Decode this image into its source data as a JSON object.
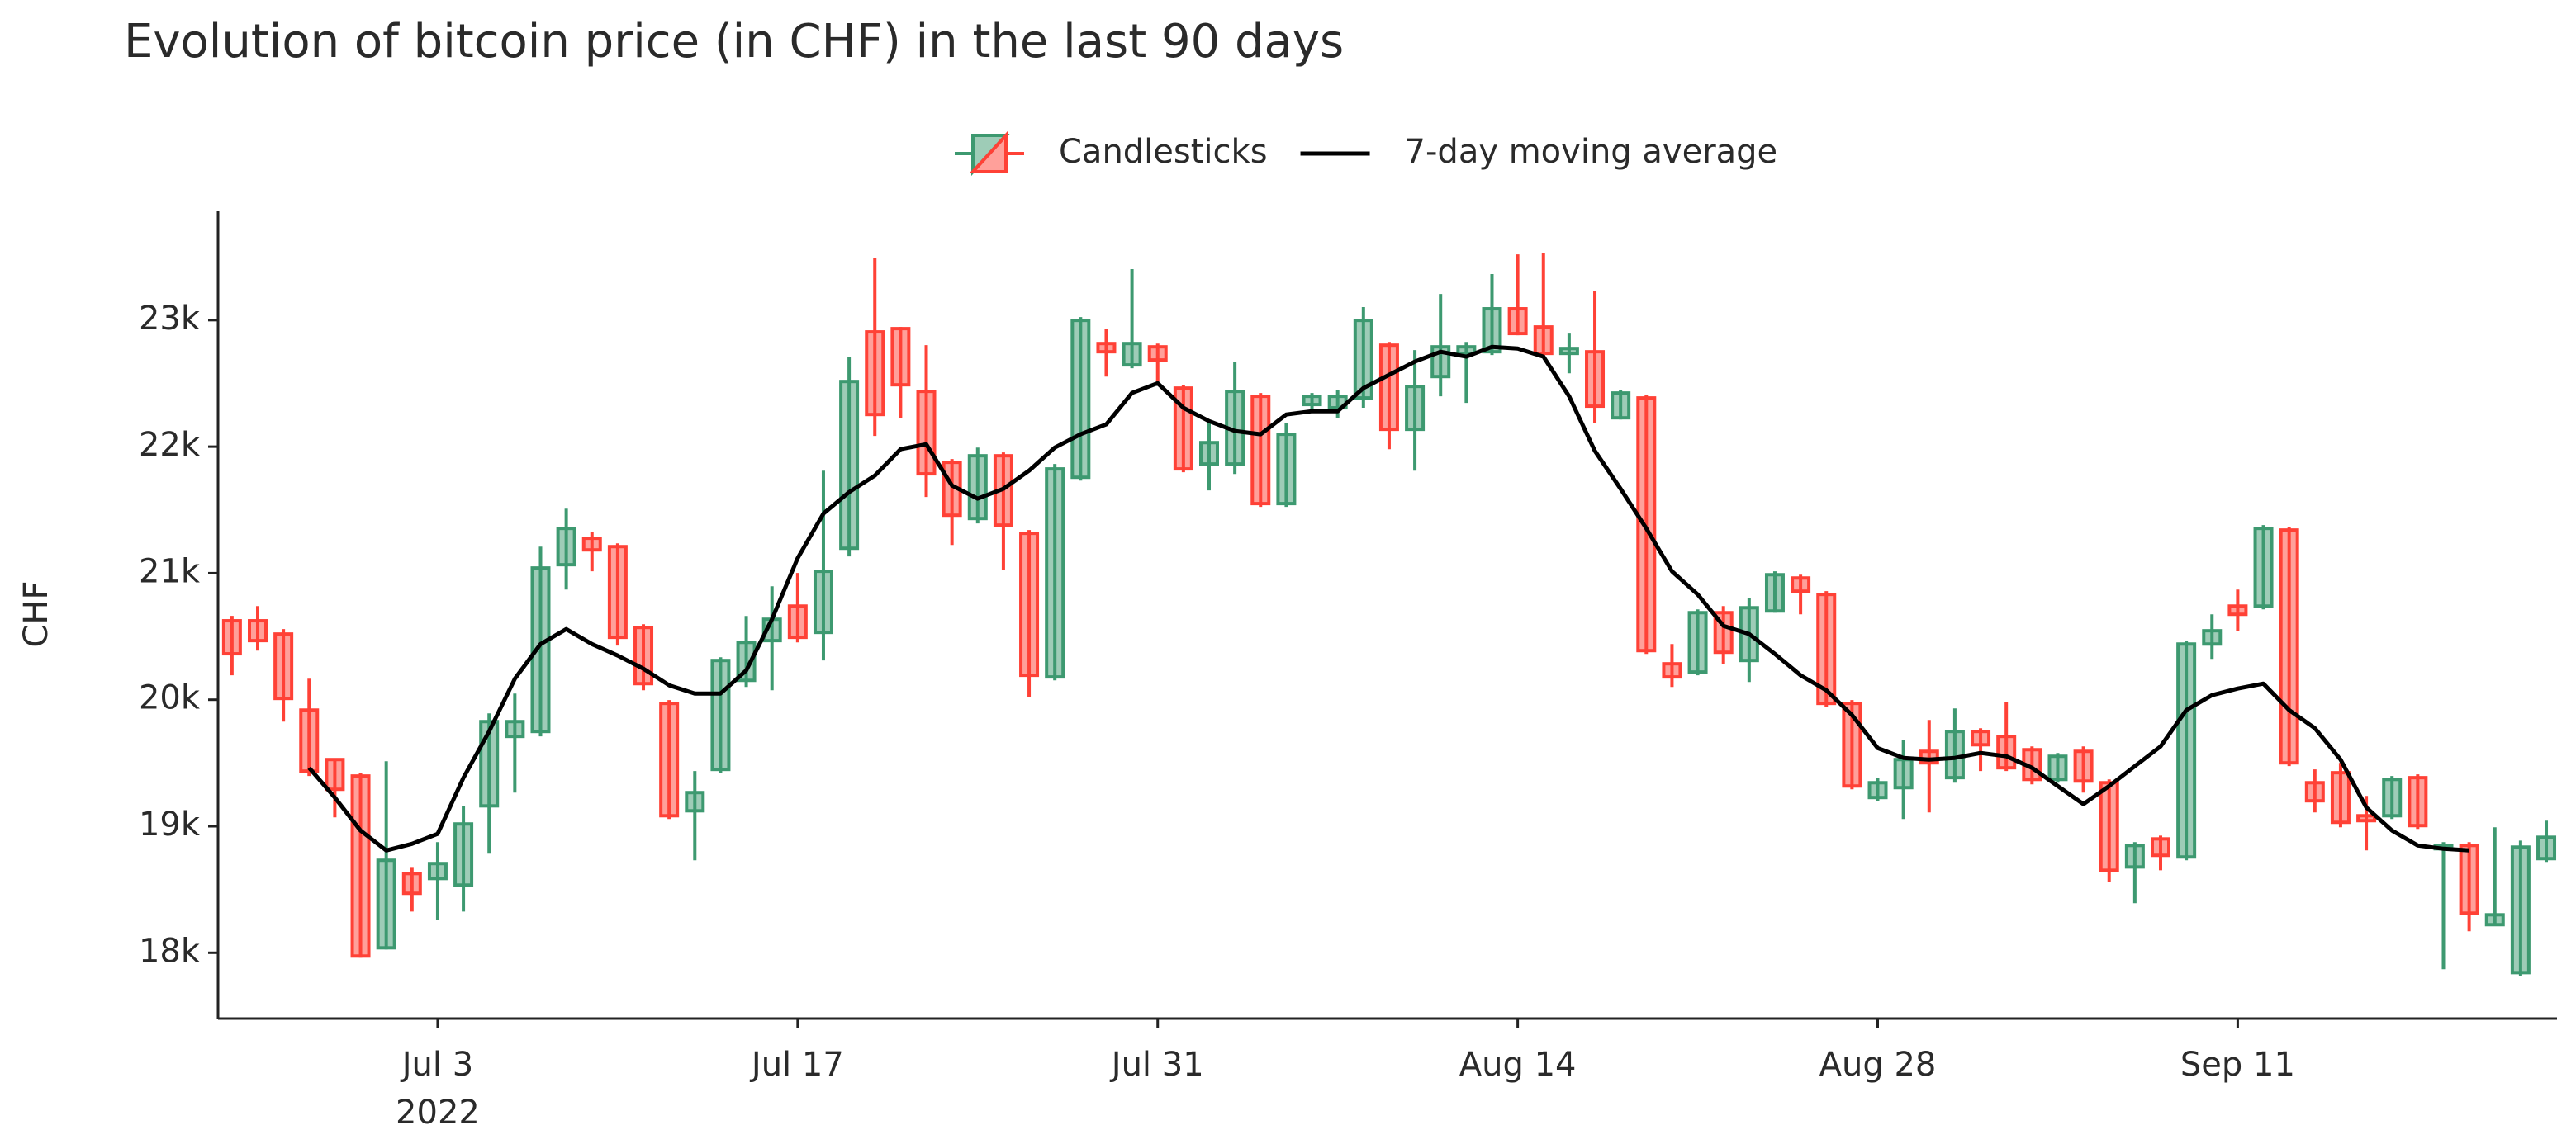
{
  "chart_data": {
    "type": "candlestick",
    "title": "Evolution of bitcoin price (in CHF) in the last 90 days",
    "y_label": "CHF",
    "x": [
      "2022-06-25",
      "2022-06-26",
      "2022-06-27",
      "2022-06-28",
      "2022-06-29",
      "2022-06-30",
      "2022-07-01",
      "2022-07-02",
      "2022-07-03",
      "2022-07-04",
      "2022-07-05",
      "2022-07-06",
      "2022-07-07",
      "2022-07-08",
      "2022-07-09",
      "2022-07-10",
      "2022-07-11",
      "2022-07-12",
      "2022-07-13",
      "2022-07-14",
      "2022-07-15",
      "2022-07-16",
      "2022-07-17",
      "2022-07-18",
      "2022-07-19",
      "2022-07-20",
      "2022-07-21",
      "2022-07-22",
      "2022-07-23",
      "2022-07-24",
      "2022-07-25",
      "2022-07-26",
      "2022-07-27",
      "2022-07-28",
      "2022-07-29",
      "2022-07-30",
      "2022-07-31",
      "2022-08-01",
      "2022-08-02",
      "2022-08-03",
      "2022-08-04",
      "2022-08-05",
      "2022-08-06",
      "2022-08-07",
      "2022-08-08",
      "2022-08-09",
      "2022-08-10",
      "2022-08-11",
      "2022-08-12",
      "2022-08-13",
      "2022-08-14",
      "2022-08-15",
      "2022-08-16",
      "2022-08-17",
      "2022-08-18",
      "2022-08-19",
      "2022-08-20",
      "2022-08-21",
      "2022-08-22",
      "2022-08-23",
      "2022-08-24",
      "2022-08-25",
      "2022-08-26",
      "2022-08-27",
      "2022-08-28",
      "2022-08-29",
      "2022-08-30",
      "2022-08-31",
      "2022-09-01",
      "2022-09-02",
      "2022-09-03",
      "2022-09-04",
      "2022-09-05",
      "2022-09-06",
      "2022-09-07",
      "2022-09-08",
      "2022-09-09",
      "2022-09-10",
      "2022-09-11",
      "2022-09-12",
      "2022-09-13",
      "2022-09-14",
      "2022-09-15",
      "2022-09-16",
      "2022-09-17",
      "2022-09-18",
      "2022-09-19",
      "2022-09-20",
      "2022-09-21",
      "2022-09-22",
      "2022-09-23"
    ],
    "series": [
      {
        "name": "Candlesticks",
        "type": "candlestick",
        "increasing_color": "#3d9970",
        "decreasing_color": "#ff4136",
        "open": [
          20624,
          20624,
          20519,
          19918,
          19527,
          19397,
          18039,
          18626,
          18587,
          18535,
          19161,
          19710,
          19749,
          21067,
          21276,
          21210,
          20571,
          19971,
          19122,
          19449,
          20153,
          20467,
          20740,
          20532,
          21197,
          22907,
          22933,
          22437,
          21876,
          21432,
          21928,
          21315,
          20180,
          21758,
          22815,
          22646,
          22789,
          22463,
          21863,
          21863,
          22398,
          21550,
          22333,
          22307,
          22385,
          22802,
          22137,
          22554,
          22737,
          22750,
          23090,
          22946,
          22737,
          22750,
          22228,
          22385,
          20284,
          20219,
          20688,
          20310,
          20701,
          20962,
          20832,
          19971,
          19227,
          19305,
          19592,
          19384,
          19749,
          19710,
          19605,
          19370,
          19592,
          19344,
          18678,
          18900,
          18757,
          20440,
          20740,
          20740,
          21341,
          19344,
          19423,
          19083,
          19083,
          19384,
          18822,
          18848,
          18222,
          17843,
          18744
        ],
        "high": [
          20663,
          20740,
          20558,
          20166,
          19527,
          19423,
          19514,
          18678,
          18874,
          19161,
          19892,
          20049,
          21210,
          21510,
          21328,
          21236,
          20597,
          19997,
          19436,
          20336,
          20662,
          20897,
          21002,
          21810,
          22711,
          23494,
          22946,
          22802,
          21902,
          21993,
          21954,
          21341,
          21863,
          23024,
          22933,
          23403,
          22815,
          22489,
          22202,
          22672,
          22424,
          22189,
          22424,
          22450,
          23103,
          22828,
          22763,
          23207,
          22828,
          23364,
          23520,
          23533,
          22894,
          23233,
          22450,
          22411,
          20440,
          20714,
          20740,
          20806,
          21015,
          20988,
          20858,
          19997,
          19384,
          19683,
          19840,
          19931,
          19775,
          19984,
          19631,
          19579,
          19631,
          19370,
          18874,
          18926,
          20466,
          20675,
          20871,
          21380,
          21367,
          19449,
          19501,
          19240,
          19397,
          19410,
          18874,
          18874,
          18992,
          18887,
          19044
        ],
        "low": [
          20193,
          20388,
          19827,
          19397,
          19070,
          17961,
          18026,
          18326,
          18261,
          18326,
          18783,
          19266,
          19710,
          20871,
          21015,
          20428,
          20075,
          19057,
          18731,
          19423,
          20101,
          20075,
          20453,
          20310,
          21132,
          22085,
          22228,
          21602,
          21223,
          21393,
          21028,
          20023,
          20153,
          21732,
          22554,
          22620,
          22515,
          21798,
          21654,
          21784,
          21524,
          21524,
          22280,
          22228,
          22307,
          21980,
          21810,
          22398,
          22346,
          22724,
          22881,
          22711,
          22580,
          22189,
          22215,
          20362,
          20101,
          20193,
          20284,
          20140,
          20688,
          20675,
          19944,
          19292,
          19201,
          19057,
          19109,
          19344,
          19436,
          19436,
          19331,
          19344,
          19266,
          18561,
          18392,
          18652,
          18731,
          20323,
          20545,
          20714,
          19475,
          19109,
          18992,
          18809,
          19057,
          18979,
          17870,
          18170,
          18222,
          17817,
          18718
        ],
        "close": [
          20363,
          20467,
          20010,
          19436,
          19292,
          17974,
          18731,
          18470,
          18705,
          19018,
          19827,
          19827,
          21041,
          21354,
          21184,
          20493,
          20127,
          19083,
          19266,
          20310,
          20453,
          20636,
          20493,
          21015,
          22515,
          22254,
          22489,
          21785,
          21458,
          21928,
          21380,
          20193,
          21824,
          22998,
          22750,
          22815,
          22685,
          21824,
          22032,
          22437,
          21550,
          22098,
          22398,
          22398,
          22998,
          22137,
          22476,
          22789,
          22789,
          23090,
          22894,
          22737,
          22776,
          22320,
          22424,
          20388,
          20180,
          20688,
          20375,
          20727,
          20988,
          20858,
          19971,
          19318,
          19344,
          19527,
          19501,
          19749,
          19644,
          19462,
          19370,
          19553,
          19357,
          18652,
          18848,
          18770,
          20440,
          20545,
          20675,
          21354,
          19501,
          19201,
          19031,
          19044,
          19370,
          19005,
          18848,
          18313,
          18300,
          18835,
          18913
        ]
      },
      {
        "name": "7-day moving average",
        "type": "line",
        "color": "#000000",
        "values": [
          null,
          null,
          null,
          19462,
          19227,
          18966,
          18809,
          18861,
          18940,
          19383,
          19749,
          20166,
          20440,
          20558,
          20440,
          20349,
          20245,
          20114,
          20049,
          20049,
          20232,
          20636,
          21119,
          21471,
          21641,
          21771,
          21980,
          22019,
          21693,
          21589,
          21667,
          21811,
          21993,
          22098,
          22176,
          22424,
          22502,
          22307,
          22202,
          22124,
          22098,
          22254,
          22280,
          22280,
          22463,
          22568,
          22672,
          22750,
          22711,
          22789,
          22776,
          22711,
          22398,
          21967,
          21667,
          21354,
          21015,
          20832,
          20584,
          20519,
          20362,
          20193,
          20075,
          19879,
          19618,
          19540,
          19527,
          19540,
          19579,
          19553,
          19462,
          19318,
          19175,
          19318,
          19475,
          19631,
          19918,
          20036,
          20088,
          20127,
          19918,
          19775,
          19527,
          19149,
          18966,
          18848,
          18822,
          18809,
          null,
          null,
          null
        ]
      }
    ],
    "xlim": [
      "2022-06-24T11:00",
      "2022-09-23T10:00"
    ],
    "xticks": [
      {
        "value": "2022-07-03",
        "label": "Jul 3"
      },
      {
        "value": "2022-07-17",
        "label": "Jul 17"
      },
      {
        "value": "2022-07-31",
        "label": "Jul 31"
      },
      {
        "value": "2022-08-14",
        "label": "Aug 14"
      },
      {
        "value": "2022-08-28",
        "label": "Aug 28"
      },
      {
        "value": "2022-09-11",
        "label": "Sep 11"
      }
    ],
    "xtick_year": "2022",
    "ylim": [
      17480,
      23860
    ],
    "yticks": [
      {
        "value": 18000,
        "label": "18k"
      },
      {
        "value": 19000,
        "label": "19k"
      },
      {
        "value": 20000,
        "label": "20k"
      },
      {
        "value": 21000,
        "label": "21k"
      },
      {
        "value": 22000,
        "label": "22k"
      },
      {
        "value": 23000,
        "label": "23k"
      }
    ],
    "grid": false,
    "legend_position": "top"
  }
}
